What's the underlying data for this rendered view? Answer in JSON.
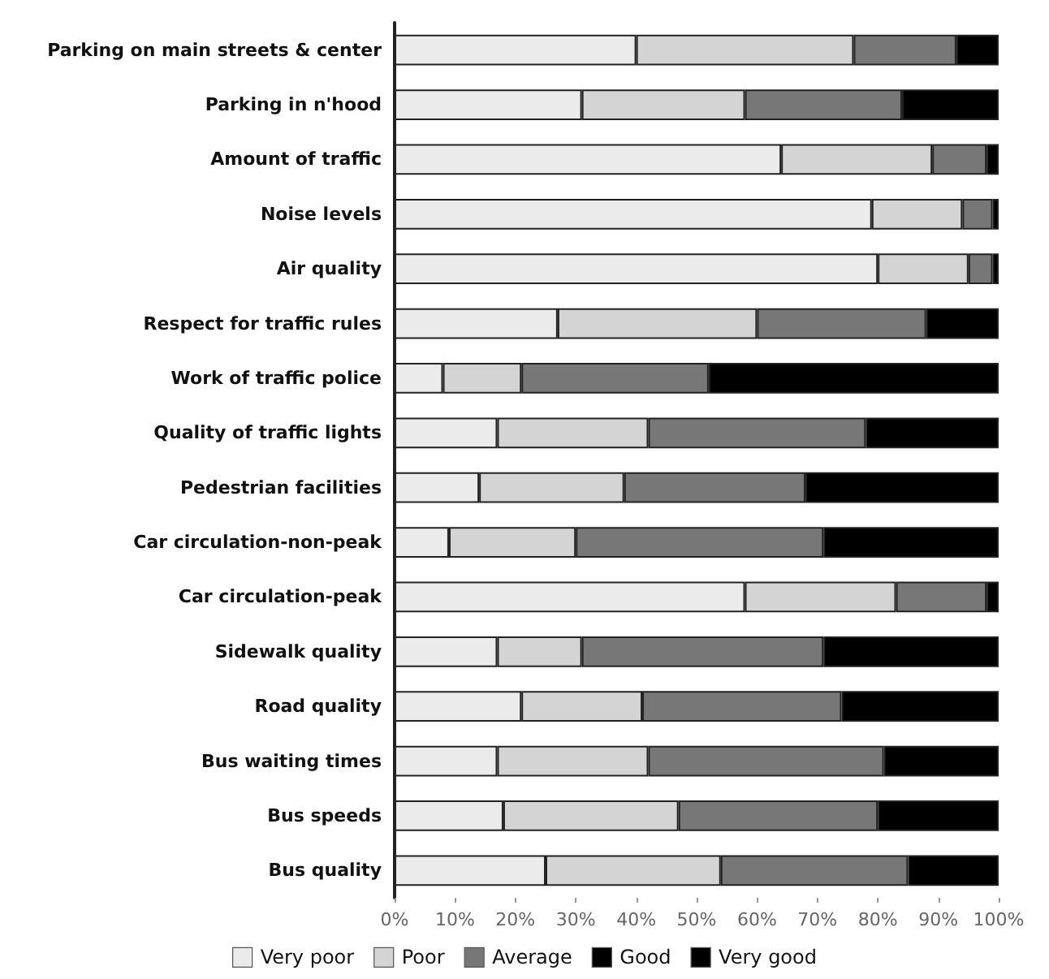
{
  "chart_data": {
    "type": "bar",
    "orientation": "horizontal",
    "stacked": true,
    "categories": [
      "Parking on main streets & center",
      "Parking in n'hood",
      "Amount of traffic",
      "Noise levels",
      "Air quality",
      "Respect for traffic rules",
      "Work of traffic police",
      "Quality of traffic lights",
      "Pedestrian facilities",
      "Car circulation-non-peak",
      "Car circulation-peak",
      "Sidewalk quality",
      "Road quality",
      "Bus waiting times",
      "Bus speeds",
      "Bus quality"
    ],
    "series": [
      {
        "name": "Very poor",
        "color": "#ebebeb",
        "values": [
          40,
          31,
          64,
          79,
          80,
          27,
          8,
          17,
          14,
          9,
          58,
          17,
          21,
          17,
          18,
          25
        ]
      },
      {
        "name": "Poor",
        "color": "#d4d4d4",
        "values": [
          36,
          27,
          25,
          15,
          15,
          33,
          13,
          25,
          24,
          21,
          25,
          14,
          20,
          25,
          29,
          29
        ]
      },
      {
        "name": "Average",
        "color": "#777777",
        "values": [
          17,
          26,
          9,
          5,
          4,
          28,
          31,
          36,
          30,
          41,
          15,
          40,
          33,
          39,
          33,
          31
        ]
      },
      {
        "name": "Good",
        "color": "#000000",
        "values": [
          7,
          16,
          2,
          1,
          1,
          12,
          48,
          22,
          32,
          29,
          2,
          29,
          26,
          19,
          20,
          15
        ]
      },
      {
        "name": "Very good",
        "color": "#000000",
        "values": [
          null,
          null,
          null,
          null,
          null,
          null,
          null,
          null,
          null,
          null,
          null,
          null,
          null,
          null,
          null,
          null
        ]
      }
    ],
    "xlim": [
      0,
      100
    ],
    "xticks": [
      {
        "value": 0,
        "label": "0%"
      },
      {
        "value": 10,
        "label": "10%"
      },
      {
        "value": 20,
        "label": "20%"
      },
      {
        "value": 30,
        "label": "30%"
      },
      {
        "value": 40,
        "label": "40%"
      },
      {
        "value": 50,
        "label": "50%"
      },
      {
        "value": 60,
        "label": "60%"
      },
      {
        "value": 70,
        "label": "70%"
      },
      {
        "value": 80,
        "label": "80%"
      },
      {
        "value": 90,
        "label": "90%"
      },
      {
        "value": 100,
        "label": "100%"
      }
    ],
    "grid": false,
    "legend": "bottom"
  }
}
